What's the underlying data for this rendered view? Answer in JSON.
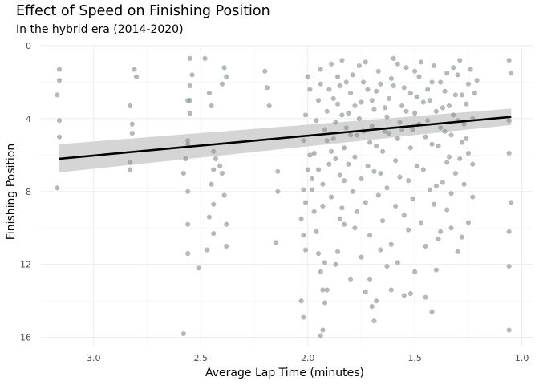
{
  "chart_data": {
    "type": "scatter",
    "title": "Effect of Speed on Finishing Position",
    "subtitle": "In the hybrid era (2014-2020)",
    "xlabel": "Average Lap Time (minutes)",
    "ylabel": "Finishing Position",
    "x_reversed": true,
    "y_reversed": true,
    "xlim": [
      3.25,
      0.95
    ],
    "ylim": [
      0,
      16.5
    ],
    "x_ticks": [
      3.0,
      2.5,
      2.0,
      1.5,
      1.0
    ],
    "x_tick_labels": [
      "3.0",
      "2.5",
      "2.0",
      "1.5",
      "1.0"
    ],
    "y_ticks": [
      0,
      4,
      8,
      12,
      16
    ],
    "y_tick_labels": [
      "0",
      "4",
      "8",
      "12",
      "16"
    ],
    "grid": true,
    "point_color": "#8c9690",
    "trend_line": {
      "type": "linear",
      "color": "#000000",
      "band_color": "#d0d0d0",
      "x": [
        3.16,
        1.05
      ],
      "y": [
        6.2,
        3.9
      ],
      "band_upper": [
        5.4,
        3.45
      ],
      "band_lower": [
        6.95,
        4.35
      ]
    },
    "points": [
      [
        3.16,
        1.3
      ],
      [
        3.16,
        1.9
      ],
      [
        3.17,
        2.7
      ],
      [
        3.16,
        4.1
      ],
      [
        3.16,
        5.0
      ],
      [
        3.17,
        7.8
      ],
      [
        2.83,
        3.3
      ],
      [
        2.82,
        4.3
      ],
      [
        2.82,
        4.8
      ],
      [
        2.83,
        6.4
      ],
      [
        2.83,
        6.8
      ],
      [
        2.81,
        1.3
      ],
      [
        2.8,
        1.7
      ],
      [
        2.55,
        0.7
      ],
      [
        2.54,
        1.6
      ],
      [
        2.55,
        2.2
      ],
      [
        2.55,
        3.0
      ],
      [
        2.56,
        3.0
      ],
      [
        2.55,
        3.7
      ],
      [
        2.56,
        5.2
      ],
      [
        2.56,
        5.4
      ],
      [
        2.57,
        6.2
      ],
      [
        2.58,
        7.0
      ],
      [
        2.56,
        8.0
      ],
      [
        2.56,
        9.8
      ],
      [
        2.56,
        11.4
      ],
      [
        2.58,
        15.8
      ],
      [
        2.48,
        0.7
      ],
      [
        2.46,
        2.6
      ],
      [
        2.45,
        3.3
      ],
      [
        2.44,
        5.8
      ],
      [
        2.43,
        6.2
      ],
      [
        2.44,
        6.8
      ],
      [
        2.45,
        7.6
      ],
      [
        2.44,
        8.7
      ],
      [
        2.46,
        9.4
      ],
      [
        2.44,
        10.3
      ],
      [
        2.47,
        11.2
      ],
      [
        2.51,
        12.2
      ],
      [
        2.39,
        1.2
      ],
      [
        2.38,
        1.7
      ],
      [
        2.4,
        2.1
      ],
      [
        2.41,
        6.6
      ],
      [
        2.4,
        7.0
      ],
      [
        2.39,
        8.2
      ],
      [
        2.38,
        9.8
      ],
      [
        2.38,
        11.0
      ],
      [
        2.2,
        1.4
      ],
      [
        2.19,
        2.3
      ],
      [
        2.18,
        3.3
      ],
      [
        2.14,
        6.9
      ],
      [
        2.14,
        8.0
      ],
      [
        2.15,
        10.8
      ],
      [
        2.01,
        3.8
      ],
      [
        2.02,
        5.2
      ],
      [
        2.0,
        6.8
      ],
      [
        2.02,
        7.9
      ],
      [
        2.01,
        8.6
      ],
      [
        2.03,
        9.5
      ],
      [
        2.02,
        10.4
      ],
      [
        2.01,
        11.2
      ],
      [
        2.03,
        14.0
      ],
      [
        2.02,
        14.9
      ],
      [
        2.0,
        1.7
      ],
      [
        1.99,
        2.4
      ],
      [
        1.99,
        6.0
      ],
      [
        1.98,
        7.3
      ],
      [
        1.98,
        7.9
      ],
      [
        1.97,
        9.1
      ],
      [
        1.96,
        10.2
      ],
      [
        1.95,
        11.4
      ],
      [
        1.94,
        12.4
      ],
      [
        1.93,
        13.4
      ],
      [
        1.92,
        14.1
      ],
      [
        1.93,
        15.6
      ],
      [
        1.94,
        15.9
      ],
      [
        1.91,
        13.4
      ],
      [
        1.92,
        11.9
      ],
      [
        1.93,
        8.8
      ],
      [
        1.9,
        6.5
      ],
      [
        1.89,
        5.8
      ],
      [
        1.87,
        12.0
      ],
      [
        1.86,
        11.3
      ],
      [
        1.85,
        9.5
      ],
      [
        1.84,
        8.9
      ],
      [
        1.83,
        7.4
      ],
      [
        1.8,
        12.8
      ],
      [
        1.78,
        10.0
      ],
      [
        1.75,
        11.6
      ],
      [
        1.73,
        13.5
      ],
      [
        1.71,
        12.8
      ],
      [
        1.7,
        14.3
      ],
      [
        1.69,
        15.1
      ],
      [
        1.68,
        14.0
      ],
      [
        1.66,
        11.2
      ],
      [
        1.63,
        12.1
      ],
      [
        1.61,
        13.4
      ],
      [
        1.58,
        11.9
      ],
      [
        1.55,
        13.7
      ],
      [
        1.52,
        13.6
      ],
      [
        1.5,
        12.4
      ],
      [
        1.45,
        13.8
      ],
      [
        1.42,
        14.6
      ],
      [
        1.4,
        12.3
      ],
      [
        1.38,
        10.2
      ],
      [
        1.35,
        9.0
      ],
      [
        1.33,
        10.0
      ],
      [
        1.3,
        11.3
      ],
      [
        1.28,
        10.5
      ],
      [
        1.25,
        9.7
      ],
      [
        1.23,
        8.3
      ],
      [
        1.06,
        0.8
      ],
      [
        1.05,
        1.5
      ],
      [
        1.06,
        4.1
      ],
      [
        1.06,
        5.9
      ],
      [
        1.05,
        8.6
      ],
      [
        1.06,
        10.2
      ],
      [
        1.06,
        12.1
      ],
      [
        1.06,
        15.6
      ],
      [
        1.96,
        4.1
      ],
      [
        1.95,
        3.0
      ],
      [
        1.94,
        2.1
      ],
      [
        1.94,
        1.3
      ],
      [
        1.92,
        4.6
      ],
      [
        1.91,
        3.6
      ],
      [
        1.9,
        2.4
      ],
      [
        1.89,
        1.0
      ],
      [
        1.88,
        5.1
      ],
      [
        1.87,
        4.2
      ],
      [
        1.86,
        3.2
      ],
      [
        1.85,
        2.2
      ],
      [
        1.84,
        0.8
      ],
      [
        1.83,
        5.6
      ],
      [
        1.82,
        4.5
      ],
      [
        1.81,
        3.7
      ],
      [
        1.8,
        2.6
      ],
      [
        1.79,
        1.6
      ],
      [
        1.78,
        6.1
      ],
      [
        1.77,
        4.9
      ],
      [
        1.76,
        4.0
      ],
      [
        1.75,
        3.1
      ],
      [
        1.74,
        2.0
      ],
      [
        1.73,
        0.9
      ],
      [
        1.72,
        6.6
      ],
      [
        1.71,
        5.3
      ],
      [
        1.7,
        4.4
      ],
      [
        1.69,
        3.5
      ],
      [
        1.68,
        2.5
      ],
      [
        1.67,
        1.4
      ],
      [
        1.66,
        7.0
      ],
      [
        1.65,
        5.8
      ],
      [
        1.64,
        4.7
      ],
      [
        1.63,
        3.9
      ],
      [
        1.62,
        2.9
      ],
      [
        1.61,
        1.8
      ],
      [
        1.6,
        0.7
      ],
      [
        1.59,
        6.3
      ],
      [
        1.58,
        5.1
      ],
      [
        1.57,
        4.2
      ],
      [
        1.56,
        3.3
      ],
      [
        1.55,
        2.3
      ],
      [
        1.54,
        1.2
      ],
      [
        1.53,
        7.4
      ],
      [
        1.52,
        5.6
      ],
      [
        1.51,
        4.6
      ],
      [
        1.5,
        3.7
      ],
      [
        1.49,
        2.8
      ],
      [
        1.48,
        1.7
      ],
      [
        1.47,
        0.9
      ],
      [
        1.46,
        6.8
      ],
      [
        1.45,
        5.0
      ],
      [
        1.44,
        4.1
      ],
      [
        1.43,
        3.0
      ],
      [
        1.42,
        2.0
      ],
      [
        1.41,
        1.1
      ],
      [
        1.4,
        7.7
      ],
      [
        1.39,
        5.5
      ],
      [
        1.38,
        4.5
      ],
      [
        1.37,
        3.4
      ],
      [
        1.36,
        2.5
      ],
      [
        1.35,
        1.5
      ],
      [
        1.34,
        6.1
      ],
      [
        1.33,
        4.9
      ],
      [
        1.32,
        3.8
      ],
      [
        1.31,
        2.7
      ],
      [
        1.3,
        1.6
      ],
      [
        1.29,
        0.8
      ],
      [
        1.28,
        5.3
      ],
      [
        1.27,
        4.3
      ],
      [
        1.26,
        3.2
      ],
      [
        1.25,
        2.1
      ],
      [
        1.24,
        1.3
      ],
      [
        1.23,
        4.0
      ],
      [
        1.22,
        2.6
      ],
      [
        1.21,
        1.9
      ],
      [
        1.97,
        5.9
      ],
      [
        1.95,
        6.8
      ],
      [
        1.93,
        7.6
      ],
      [
        1.91,
        5.2
      ],
      [
        1.89,
        8.3
      ],
      [
        1.87,
        6.2
      ],
      [
        1.85,
        7.1
      ],
      [
        1.83,
        9.8
      ],
      [
        1.81,
        6.5
      ],
      [
        1.79,
        8.0
      ],
      [
        1.77,
        9.1
      ],
      [
        1.75,
        7.3
      ],
      [
        1.73,
        8.6
      ],
      [
        1.71,
        10.4
      ],
      [
        1.69,
        6.9
      ],
      [
        1.67,
        8.2
      ],
      [
        1.65,
        9.6
      ],
      [
        1.63,
        7.8
      ],
      [
        1.61,
        10.9
      ],
      [
        1.59,
        8.8
      ],
      [
        1.57,
        7.2
      ],
      [
        1.55,
        9.3
      ],
      [
        1.53,
        10.1
      ],
      [
        1.51,
        8.4
      ],
      [
        1.49,
        6.6
      ],
      [
        1.47,
        9.7
      ],
      [
        1.45,
        11.0
      ],
      [
        1.43,
        7.9
      ],
      [
        1.41,
        8.7
      ],
      [
        1.39,
        10.6
      ],
      [
        1.37,
        7.5
      ],
      [
        1.35,
        6.4
      ],
      [
        1.33,
        8.1
      ],
      [
        1.31,
        7.0
      ],
      [
        1.29,
        6.2
      ],
      [
        1.27,
        7.6
      ],
      [
        1.25,
        5.9
      ],
      [
        1.23,
        6.5
      ],
      [
        1.88,
        2.9
      ],
      [
        1.86,
        1.7
      ],
      [
        1.84,
        3.8
      ],
      [
        1.82,
        2.0
      ],
      [
        1.8,
        4.9
      ],
      [
        1.78,
        3.3
      ],
      [
        1.76,
        1.1
      ],
      [
        1.74,
        4.7
      ],
      [
        1.72,
        2.4
      ],
      [
        1.7,
        3.0
      ],
      [
        1.68,
        5.5
      ],
      [
        1.66,
        2.1
      ],
      [
        1.64,
        3.4
      ],
      [
        1.62,
        4.8
      ],
      [
        1.6,
        2.2
      ],
      [
        1.58,
        1.0
      ],
      [
        1.56,
        4.6
      ],
      [
        1.54,
        3.6
      ],
      [
        1.52,
        2.6
      ],
      [
        1.5,
        1.4
      ],
      [
        1.48,
        4.3
      ],
      [
        1.46,
        3.1
      ],
      [
        1.44,
        2.4
      ],
      [
        1.42,
        5.4
      ],
      [
        1.4,
        3.6
      ],
      [
        1.38,
        2.0
      ],
      [
        1.36,
        4.7
      ],
      [
        1.34,
        3.3
      ],
      [
        1.32,
        1.2
      ],
      [
        1.3,
        4.1
      ],
      [
        1.28,
        2.7
      ],
      [
        1.26,
        5.1
      ]
    ]
  }
}
